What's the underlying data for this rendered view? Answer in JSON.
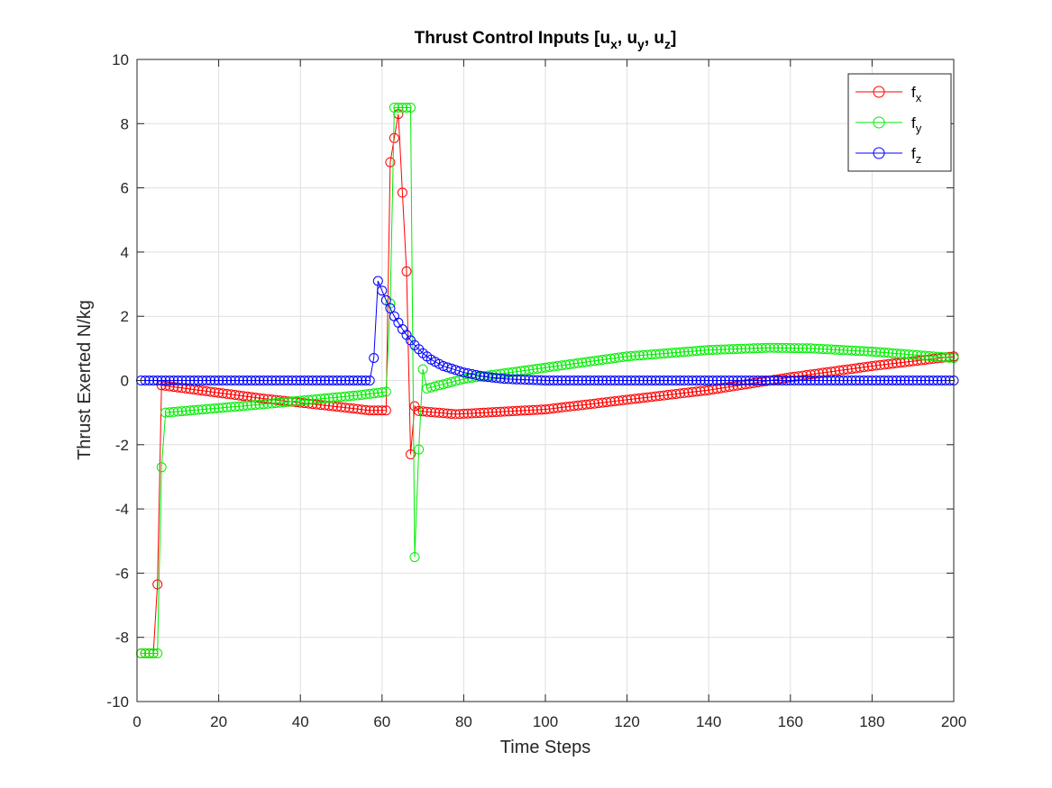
{
  "chart_data": {
    "type": "line",
    "title": {
      "prefix": "Thrust Control Inputs [",
      "parts": [
        {
          "base": "u",
          "sub": "x",
          "sep": ", "
        },
        {
          "base": "u",
          "sub": "y",
          "sep": ", "
        },
        {
          "base": "u",
          "sub": "z",
          "sep": "]"
        }
      ]
    },
    "xlabel": "Time Steps",
    "ylabel": "Thrust Exerted N/kg",
    "xlim": [
      0,
      200
    ],
    "ylim": [
      -10,
      10
    ],
    "xticks": [
      "0",
      "20",
      "40",
      "60",
      "80",
      "100",
      "120",
      "140",
      "160",
      "180",
      "200"
    ],
    "yticks": [
      "-10",
      "-8",
      "-6",
      "-4",
      "-2",
      "0",
      "2",
      "4",
      "6",
      "8",
      "10"
    ],
    "grid": true,
    "legend_position": "top-right",
    "marker": "circle",
    "series": [
      {
        "name": "f",
        "sub": "x",
        "color": "#ff0000",
        "key_points": [
          [
            1,
            -8.5
          ],
          [
            4,
            -8.5
          ],
          [
            5,
            -6.35
          ],
          [
            6,
            -0.15
          ],
          [
            30,
            -0.55
          ],
          [
            57,
            -0.93
          ],
          [
            61,
            -0.93
          ],
          [
            62,
            6.8
          ],
          [
            64,
            8.3
          ],
          [
            66,
            3.4
          ],
          [
            67,
            -2.3
          ],
          [
            68,
            -0.8
          ],
          [
            69,
            -0.95
          ],
          [
            78,
            -1.05
          ],
          [
            100,
            -0.9
          ],
          [
            120,
            -0.6
          ],
          [
            140,
            -0.3
          ],
          [
            160,
            0.1
          ],
          [
            180,
            0.45
          ],
          [
            200,
            0.75
          ]
        ]
      },
      {
        "name": "f",
        "sub": "y",
        "color": "#00ee00",
        "key_points": [
          [
            1,
            -8.5
          ],
          [
            5,
            -8.5
          ],
          [
            6,
            -2.7
          ],
          [
            7,
            -1.0
          ],
          [
            30,
            -0.75
          ],
          [
            55,
            -0.45
          ],
          [
            61,
            -0.35
          ],
          [
            62,
            2.4
          ],
          [
            63,
            8.5
          ],
          [
            67,
            8.5
          ],
          [
            68,
            -5.5
          ],
          [
            69,
            -2.15
          ],
          [
            70,
            0.35
          ],
          [
            71,
            -0.25
          ],
          [
            80,
            0.05
          ],
          [
            100,
            0.4
          ],
          [
            120,
            0.75
          ],
          [
            140,
            0.95
          ],
          [
            155,
            1.02
          ],
          [
            165,
            1.0
          ],
          [
            180,
            0.9
          ],
          [
            200,
            0.7
          ]
        ]
      },
      {
        "name": "f",
        "sub": "z",
        "color": "#0000ff",
        "key_points": [
          [
            1,
            0.0
          ],
          [
            57,
            0.0
          ],
          [
            58,
            0.7
          ],
          [
            59,
            3.1
          ],
          [
            60,
            2.8
          ],
          [
            61,
            2.5
          ],
          [
            62,
            2.25
          ],
          [
            63,
            2.0
          ],
          [
            64,
            1.8
          ],
          [
            65,
            1.6
          ],
          [
            66,
            1.42
          ],
          [
            67,
            1.25
          ],
          [
            68,
            1.1
          ],
          [
            70,
            0.85
          ],
          [
            72,
            0.65
          ],
          [
            75,
            0.45
          ],
          [
            80,
            0.25
          ],
          [
            85,
            0.12
          ],
          [
            90,
            0.05
          ],
          [
            100,
            0.0
          ],
          [
            200,
            0.0
          ]
        ]
      }
    ]
  }
}
